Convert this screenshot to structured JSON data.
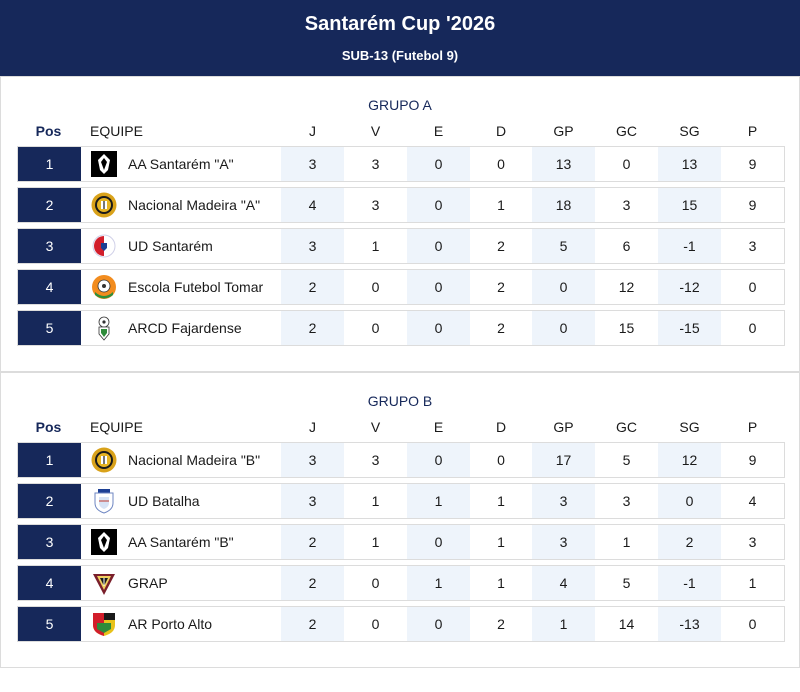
{
  "header": {
    "title": "Santarém Cup '2026",
    "subtitle": "SUB-13 (Futebol 9)"
  },
  "columns": {
    "pos": "Pos",
    "team": "EQUIPE",
    "j": "J",
    "v": "V",
    "e": "E",
    "d": "D",
    "gp": "GP",
    "gc": "GC",
    "sg": "SG",
    "p": "P"
  },
  "colors": {
    "primary": "#16285a",
    "shade": "#eef4fb",
    "border": "#dcdcdc"
  },
  "groups": [
    {
      "title": "GRUPO A",
      "rows": [
        {
          "pos": "1",
          "team": "AA Santarém \"A\"",
          "logo": "aa-santarem-crest-icon",
          "j": "3",
          "v": "3",
          "e": "0",
          "d": "0",
          "gp": "13",
          "gc": "0",
          "sg": "13",
          "p": "9"
        },
        {
          "pos": "2",
          "team": "Nacional Madeira \"A\"",
          "logo": "nacional-madeira-crest-icon",
          "j": "4",
          "v": "3",
          "e": "0",
          "d": "1",
          "gp": "18",
          "gc": "3",
          "sg": "15",
          "p": "9"
        },
        {
          "pos": "3",
          "team": "UD Santarém",
          "logo": "ud-santarem-crest-icon",
          "j": "3",
          "v": "1",
          "e": "0",
          "d": "2",
          "gp": "5",
          "gc": "6",
          "sg": "-1",
          "p": "3"
        },
        {
          "pos": "4",
          "team": "Escola Futebol Tomar",
          "logo": "escola-futebol-tomar-crest-icon",
          "j": "2",
          "v": "0",
          "e": "0",
          "d": "2",
          "gp": "0",
          "gc": "12",
          "sg": "-12",
          "p": "0"
        },
        {
          "pos": "5",
          "team": "ARCD Fajardense",
          "logo": "arcd-fajardense-crest-icon",
          "j": "2",
          "v": "0",
          "e": "0",
          "d": "2",
          "gp": "0",
          "gc": "15",
          "sg": "-15",
          "p": "0"
        }
      ]
    },
    {
      "title": "GRUPO B",
      "rows": [
        {
          "pos": "1",
          "team": "Nacional Madeira \"B\"",
          "logo": "nacional-madeira-crest-icon",
          "j": "3",
          "v": "3",
          "e": "0",
          "d": "0",
          "gp": "17",
          "gc": "5",
          "sg": "12",
          "p": "9"
        },
        {
          "pos": "2",
          "team": "UD Batalha",
          "logo": "ud-batalha-crest-icon",
          "j": "3",
          "v": "1",
          "e": "1",
          "d": "1",
          "gp": "3",
          "gc": "3",
          "sg": "0",
          "p": "4"
        },
        {
          "pos": "3",
          "team": "AA Santarém \"B\"",
          "logo": "aa-santarem-crest-icon",
          "j": "2",
          "v": "1",
          "e": "0",
          "d": "1",
          "gp": "3",
          "gc": "1",
          "sg": "2",
          "p": "3"
        },
        {
          "pos": "4",
          "team": "GRAP",
          "logo": "grap-crest-icon",
          "j": "2",
          "v": "0",
          "e": "1",
          "d": "1",
          "gp": "4",
          "gc": "5",
          "sg": "-1",
          "p": "1"
        },
        {
          "pos": "5",
          "team": "AR Porto Alto",
          "logo": "ar-porto-alto-crest-icon",
          "j": "2",
          "v": "0",
          "e": "0",
          "d": "2",
          "gp": "1",
          "gc": "14",
          "sg": "-13",
          "p": "0"
        }
      ]
    }
  ]
}
